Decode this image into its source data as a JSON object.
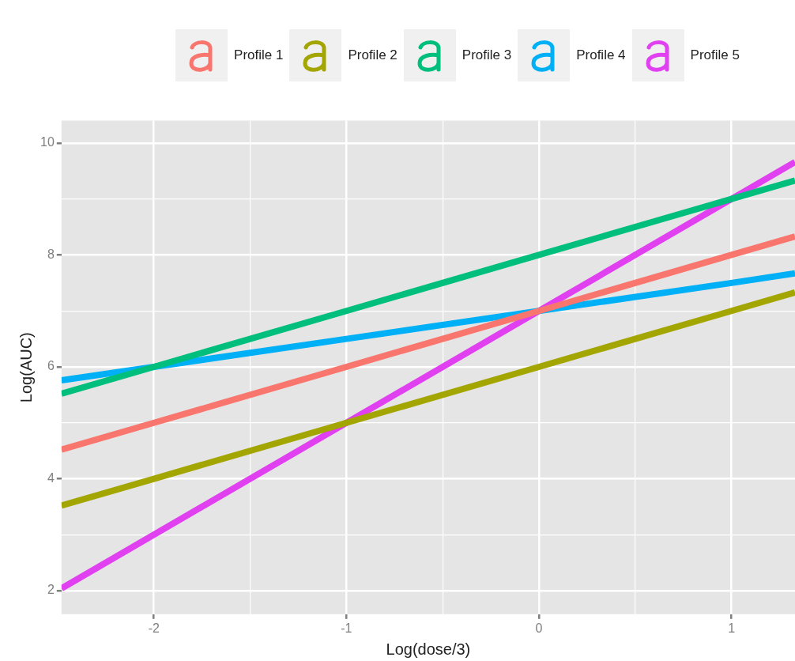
{
  "chart_data": {
    "type": "line",
    "xlabel": "Log(dose/3)",
    "ylabel": "Log(AUC)",
    "x": [
      -2.48,
      -2,
      -1,
      0,
      1,
      1.33
    ],
    "xlim": [
      -2.48,
      1.33
    ],
    "xticks": [
      -2,
      {
        "value": -1.5,
        "label": null
      },
      -1,
      {
        "value": -0.5,
        "label": null
      },
      0,
      {
        "value": 0.5,
        "label": null
      },
      1
    ],
    "ylim": [
      1.58,
      10.4
    ],
    "yticks": [
      2,
      {
        "value": 3,
        "label": null
      },
      4,
      {
        "value": 5,
        "label": null
      },
      6,
      {
        "value": 7,
        "label": null
      },
      8,
      {
        "value": 9,
        "label": null
      },
      10
    ],
    "grid": true,
    "legend": "top",
    "marker": "none",
    "line_style": "solid",
    "series": [
      {
        "name": "Profile 1",
        "color": "#f8766d",
        "values": [
          4.52,
          5,
          6,
          7,
          8,
          8.33
        ]
      },
      {
        "name": "Profile 2",
        "color": "#a3a500",
        "values": [
          3.52,
          4,
          5,
          6,
          7,
          7.33
        ]
      },
      {
        "name": "Profile 3",
        "color": "#00bf7d",
        "values": [
          5.52,
          6,
          7,
          8,
          9,
          9.33
        ]
      },
      {
        "name": "Profile 4",
        "color": "#00b0f6",
        "values": [
          5.76,
          6,
          6.5,
          7,
          7.5,
          7.67
        ]
      },
      {
        "name": "Profile 5",
        "color": "#e040f0",
        "values": [
          2.04,
          3,
          5,
          7,
          9,
          9.66
        ]
      }
    ]
  }
}
